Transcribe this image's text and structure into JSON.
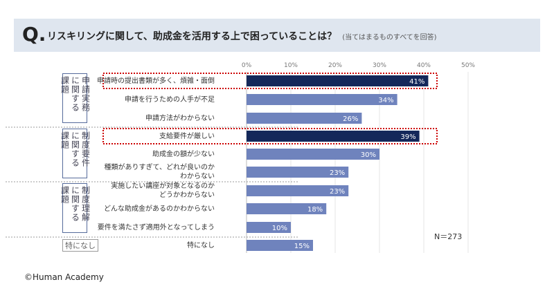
{
  "header": {
    "q_mark": "Q.",
    "question": "リスキリングに関して、助成金を活用する上で困っていることは？",
    "note": "(当てはまるものすべてを回答)"
  },
  "groups": [
    {
      "label": "申請実務に関する課題"
    },
    {
      "label": "制度要件に関する課題"
    },
    {
      "label": "制度理解に関する課題"
    },
    {
      "label": "特になし"
    }
  ],
  "sample_size": "N＝273",
  "copyright": "©Human Academy",
  "chart_data": {
    "type": "bar",
    "orientation": "horizontal",
    "categories": [
      "申請時の提出書類が多く、煩雑・面倒",
      "申請を行うための人手が不足",
      "申請方法がわからない",
      "支給要件が厳しい",
      "助成金の額が少ない",
      "種類がありすぎて、どれが良いのか\nわからない",
      "実施したい講座が対象となるのか\nどうかわからない",
      "どんな助成金があるのかわからない",
      "要件を満たさず適用外となってしまう",
      "特になし"
    ],
    "values": [
      41,
      34,
      26,
      39,
      30,
      23,
      23,
      18,
      10,
      15
    ],
    "data_labels": [
      "41%",
      "34%",
      "26%",
      "39%",
      "30%",
      "23%",
      "23%",
      "18%",
      "10%",
      "15%"
    ],
    "highlighted": [
      0,
      3
    ],
    "xlim": [
      0,
      50
    ],
    "tick_labels": [
      "0%",
      "10%",
      "20%",
      "30%",
      "40%",
      "50%"
    ],
    "axis_position": "top",
    "grid": true,
    "colors": {
      "default": "#6f83bd",
      "highlight": "#14285a",
      "highlight_box": "#cc0000"
    }
  }
}
